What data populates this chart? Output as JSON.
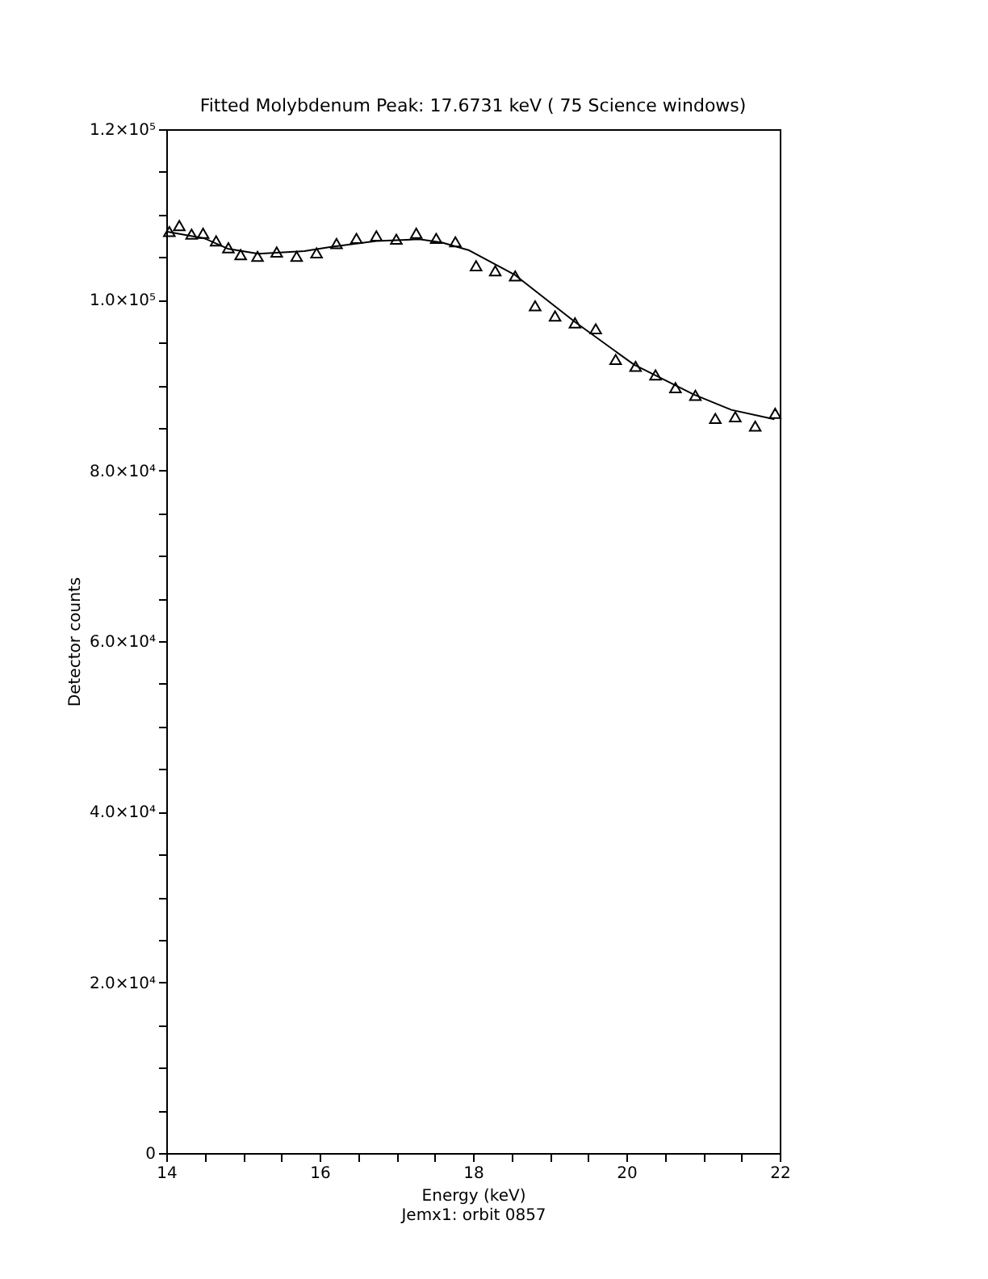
{
  "chart_data": {
    "type": "scatter",
    "title": "Fitted Molybdenum Peak:        17.6731 keV (       75 Science windows)",
    "xlabel": "Energy (keV)",
    "ylabel": "Detector counts",
    "annotations": [
      "Jemx1: orbit 0857"
    ],
    "xlim": [
      14,
      22
    ],
    "xticks": [
      14,
      {
        "value": 14.5,
        "label": null
      },
      {
        "value": 15,
        "label": null
      },
      {
        "value": 15.5,
        "label": null
      },
      16,
      {
        "value": 16.5,
        "label": null
      },
      {
        "value": 17,
        "label": null
      },
      {
        "value": 17.5,
        "label": null
      },
      18,
      {
        "value": 18.5,
        "label": null
      },
      {
        "value": 19,
        "label": null
      },
      {
        "value": 19.5,
        "label": null
      },
      20,
      {
        "value": 20.5,
        "label": null
      },
      {
        "value": 21,
        "label": null
      },
      {
        "value": 21.5,
        "label": null
      },
      22
    ],
    "ylim": [
      0,
      120000
    ],
    "yticks": [
      0,
      {
        "value": 5000,
        "label": null
      },
      {
        "value": 10000,
        "label": null
      },
      {
        "value": 15000,
        "label": null
      },
      {
        "value": 20000,
        "label": "2.0×10⁴"
      },
      {
        "value": 25000,
        "label": null
      },
      {
        "value": 30000,
        "label": null
      },
      {
        "value": 35000,
        "label": null
      },
      {
        "value": 40000,
        "label": "4.0×10⁴"
      },
      {
        "value": 45000,
        "label": null
      },
      {
        "value": 50000,
        "label": null
      },
      {
        "value": 55000,
        "label": null
      },
      {
        "value": 60000,
        "label": "6.0×10⁴"
      },
      {
        "value": 65000,
        "label": null
      },
      {
        "value": 70000,
        "label": null
      },
      {
        "value": 75000,
        "label": null
      },
      {
        "value": 80000,
        "label": "8.0×10⁴"
      },
      {
        "value": 85000,
        "label": null
      },
      {
        "value": 90000,
        "label": null
      },
      {
        "value": 95000,
        "label": null
      },
      {
        "value": 100000,
        "label": "1.0×10⁵"
      },
      {
        "value": 105000,
        "label": null
      },
      {
        "value": 110000,
        "label": null
      },
      {
        "value": 115000,
        "label": null
      },
      {
        "value": 120000,
        "label": "1.2×10⁵"
      }
    ],
    "grid": false,
    "series": [
      {
        "marker": "triangle",
        "color": "#000000",
        "x": [
          14.04,
          14.17,
          14.33,
          14.48,
          14.65,
          14.81,
          14.97,
          15.19,
          15.44,
          15.7,
          15.96,
          16.22,
          16.48,
          16.74,
          17.0,
          17.26,
          17.52,
          17.77,
          18.04,
          18.29,
          18.55,
          18.81,
          19.07,
          19.33,
          19.6,
          19.86,
          20.12,
          20.38,
          20.64,
          20.9,
          21.16,
          21.42,
          21.68,
          21.94
        ],
        "values": [
          108000,
          108700,
          107700,
          107800,
          106900,
          106100,
          105300,
          105100,
          105600,
          105100,
          105500,
          106600,
          107200,
          107500,
          107100,
          107800,
          107200,
          106800,
          104000,
          103400,
          102800,
          99300,
          98100,
          97300,
          96600,
          93000,
          92200,
          91200,
          89700,
          88800,
          86100,
          86300,
          85200,
          86700
        ]
      },
      {
        "type": "line",
        "line_style": "solid",
        "color": "#000000",
        "x": [
          14.0,
          14.5,
          14.8,
          15.2,
          15.8,
          16.15,
          16.74,
          17.3,
          17.6,
          17.95,
          18.55,
          19.33,
          20.1,
          20.88,
          21.37,
          21.93
        ],
        "values": [
          108000,
          107200,
          106000,
          105400,
          105700,
          106200,
          106900,
          107100,
          106700,
          105800,
          102900,
          97400,
          92400,
          88900,
          87100,
          86000
        ]
      }
    ]
  }
}
